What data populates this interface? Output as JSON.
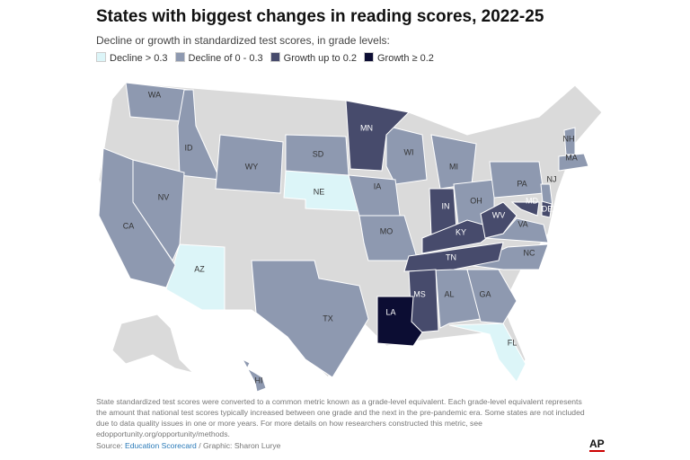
{
  "header": {
    "title": "States with biggest changes in reading scores, 2022-25",
    "subtitle": "Decline or growth in standardized test scores, in grade levels:"
  },
  "legend": [
    {
      "label": "Decline > 0.3",
      "color": "#dcf5f8",
      "text_color": "#333333",
      "states": [
        "AZ",
        "NE",
        "FL"
      ]
    },
    {
      "label": "Decline of 0 - 0.3",
      "color": "#8e99b0",
      "text_color": "#333333",
      "states": [
        "WA",
        "ID",
        "NV",
        "CA",
        "WY",
        "SD",
        "WI",
        "IA",
        "MO",
        "MI",
        "OH",
        "PA",
        "NJ",
        "NH",
        "MA",
        "VA",
        "NC",
        "AL",
        "GA",
        "TX",
        "HI"
      ]
    },
    {
      "label": "Growth up to 0.2",
      "color": "#474b6c",
      "text_color": "#ffffff",
      "states": [
        "MN",
        "IN",
        "KY",
        "TN",
        "WV",
        "MS",
        "MD",
        "DE"
      ]
    },
    {
      "label": "Growth ≥ 0.2",
      "color": "#0c0d33",
      "text_color": "#ffffff",
      "states": [
        "LA"
      ]
    }
  ],
  "footer": {
    "note": "State standardized test scores were converted to a common metric known as a grade-level equivalent. Each grade-level equivalent represents the amount that national test scores typically increased between one grade and the next in the pre-pandemic era. Some states are not included due to data quality issues in one or more years. For more details on how researchers constructed this metric, see edopportunity.org/opportunity/methods.",
    "source_label": "Source:",
    "source_link": "Education Scorecard",
    "credit": "/ Graphic: Sharon Lurye",
    "logo": "AP"
  }
}
